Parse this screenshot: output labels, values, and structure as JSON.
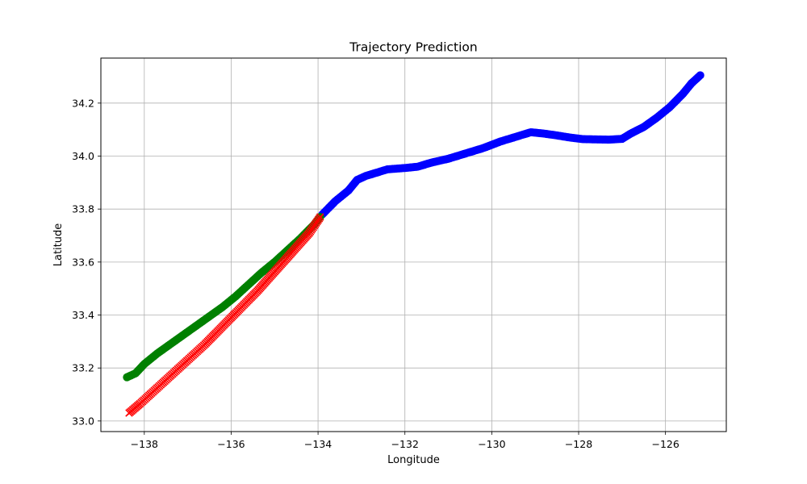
{
  "chart_data": {
    "type": "scatter",
    "title": "Trajectory Prediction",
    "xlabel": "Longitude",
    "ylabel": "Latitude",
    "xlim": [
      -139.0,
      -124.6
    ],
    "ylim": [
      32.96,
      34.37
    ],
    "xticks": [
      -138,
      -136,
      -134,
      -132,
      -130,
      -128,
      -126
    ],
    "xtick_labels": [
      "−138",
      "−136",
      "−134",
      "−132",
      "−130",
      "−128",
      "−126"
    ],
    "yticks": [
      33.0,
      33.2,
      33.4,
      33.6,
      33.8,
      34.0,
      34.2
    ],
    "ytick_labels": [
      "33.0",
      "33.2",
      "33.4",
      "33.6",
      "33.8",
      "34.0",
      "34.2"
    ],
    "grid": true,
    "legend": "none",
    "series": [
      {
        "color": "#0000ff",
        "marker": "circle",
        "points": [
          [
            -133.9,
            33.78
          ],
          [
            -133.6,
            33.83
          ],
          [
            -133.3,
            33.87
          ],
          [
            -133.1,
            33.91
          ],
          [
            -132.9,
            33.925
          ],
          [
            -132.6,
            33.94
          ],
          [
            -132.4,
            33.95
          ],
          [
            -132.0,
            33.955
          ],
          [
            -131.7,
            33.96
          ],
          [
            -131.4,
            33.975
          ],
          [
            -131.0,
            33.99
          ],
          [
            -130.6,
            34.01
          ],
          [
            -130.2,
            34.03
          ],
          [
            -129.8,
            34.055
          ],
          [
            -129.4,
            34.075
          ],
          [
            -129.1,
            34.09
          ],
          [
            -128.8,
            34.085
          ],
          [
            -128.5,
            34.078
          ],
          [
            -128.2,
            34.07
          ],
          [
            -127.9,
            34.064
          ],
          [
            -127.6,
            34.063
          ],
          [
            -127.3,
            34.062
          ],
          [
            -127.0,
            34.065
          ],
          [
            -126.8,
            34.085
          ],
          [
            -126.5,
            34.11
          ],
          [
            -126.2,
            34.145
          ],
          [
            -125.9,
            34.185
          ],
          [
            -125.6,
            34.235
          ],
          [
            -125.4,
            34.275
          ],
          [
            -125.2,
            34.305
          ]
        ]
      },
      {
        "color": "#008000",
        "marker": "circle",
        "points": [
          [
            -138.4,
            33.165
          ],
          [
            -138.2,
            33.18
          ],
          [
            -138.0,
            33.215
          ],
          [
            -137.7,
            33.255
          ],
          [
            -137.4,
            33.29
          ],
          [
            -137.1,
            33.325
          ],
          [
            -136.8,
            33.36
          ],
          [
            -136.5,
            33.395
          ],
          [
            -136.2,
            33.43
          ],
          [
            -135.9,
            33.47
          ],
          [
            -135.6,
            33.515
          ],
          [
            -135.3,
            33.56
          ],
          [
            -135.0,
            33.6
          ],
          [
            -134.7,
            33.645
          ],
          [
            -134.4,
            33.69
          ],
          [
            -134.1,
            33.74
          ],
          [
            -133.95,
            33.77
          ]
        ]
      },
      {
        "color": "#ff0000",
        "marker": "x",
        "points": [
          [
            -138.35,
            33.03
          ],
          [
            -138.1,
            33.065
          ],
          [
            -137.8,
            33.11
          ],
          [
            -137.5,
            33.155
          ],
          [
            -137.2,
            33.2
          ],
          [
            -136.9,
            33.245
          ],
          [
            -136.6,
            33.29
          ],
          [
            -136.3,
            33.34
          ],
          [
            -136.0,
            33.39
          ],
          [
            -135.7,
            33.44
          ],
          [
            -135.4,
            33.49
          ],
          [
            -135.1,
            33.545
          ],
          [
            -134.8,
            33.6
          ],
          [
            -134.5,
            33.655
          ],
          [
            -134.2,
            33.71
          ],
          [
            -133.95,
            33.77
          ]
        ]
      }
    ]
  }
}
